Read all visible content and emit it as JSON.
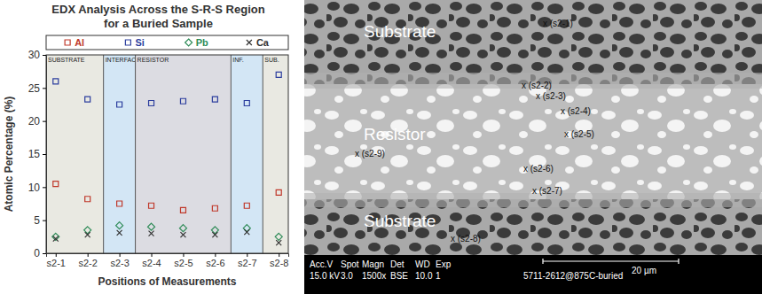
{
  "chart_data": {
    "type": "scatter",
    "title": "EDX Analysis Across the S-R-S Region\nfor a Buried Sample",
    "x_label": "Positions of Measurements",
    "y_label": "Atomic Percentage (%)",
    "categories": [
      "s2-1",
      "s2-2",
      "s2-3",
      "s2-4",
      "s2-5",
      "s2-6",
      "s2-7",
      "s2-8"
    ],
    "series": [
      {
        "name": "Al",
        "color": "#c0392b",
        "marker": "square",
        "values": [
          10.5,
          8.2,
          7.5,
          7.2,
          6.5,
          6.8,
          7.2,
          9.2
        ]
      },
      {
        "name": "Si",
        "color": "#2c3e9e",
        "marker": "square",
        "values": [
          26,
          23.3,
          22.5,
          22.7,
          23,
          23.3,
          22.7,
          27
        ]
      },
      {
        "name": "Pb",
        "color": "#2e8b57",
        "marker": "diamond",
        "values": [
          2.5,
          3.5,
          4.2,
          4,
          3.8,
          3.5,
          3.8,
          2.5
        ]
      },
      {
        "name": "Ca",
        "color": "#333333",
        "marker": "x",
        "values": [
          2.2,
          2.8,
          3.1,
          3,
          2.8,
          2.8,
          3.2,
          1.6
        ]
      }
    ],
    "ylim": [
      0,
      30
    ],
    "yticks": [
      0,
      5,
      10,
      15,
      20,
      25,
      30
    ],
    "legend": "top",
    "grid": false,
    "regions": [
      {
        "label": "SUBSTRATE",
        "categories": [
          "s2-1",
          "s2-2"
        ]
      },
      {
        "label": "INTERFACE",
        "categories": [
          "s2-3"
        ]
      },
      {
        "label": "RESISTOR",
        "categories": [
          "s2-4",
          "s2-5",
          "s2-6"
        ]
      },
      {
        "label": "INF.",
        "categories": [
          "s2-7"
        ]
      },
      {
        "label": "SUB.",
        "categories": [
          "s2-8"
        ]
      }
    ]
  },
  "micrograph": {
    "region_labels": [
      "Substrate",
      "Resistor",
      "Substrate"
    ],
    "point_labels": [
      "x (s2-1)",
      "x (s2-2)",
      "x (s2-3)",
      "x (s2-4)",
      "x (s2-5)",
      "x (s2-9)",
      "x (s2-6)",
      "x (s2-7)",
      "x (s2-8)"
    ],
    "info_bar": {
      "columns": [
        [
          "Acc.V",
          "15.0 kV"
        ],
        [
          "Spot",
          "3.0"
        ],
        [
          "Magn",
          "1500x"
        ],
        [
          "Det",
          "BSE"
        ],
        [
          "WD",
          "10.0"
        ],
        [
          "Exp",
          "1"
        ]
      ],
      "sample": "5711-2612@875C-buried",
      "scale_bar": "20 µm"
    }
  }
}
